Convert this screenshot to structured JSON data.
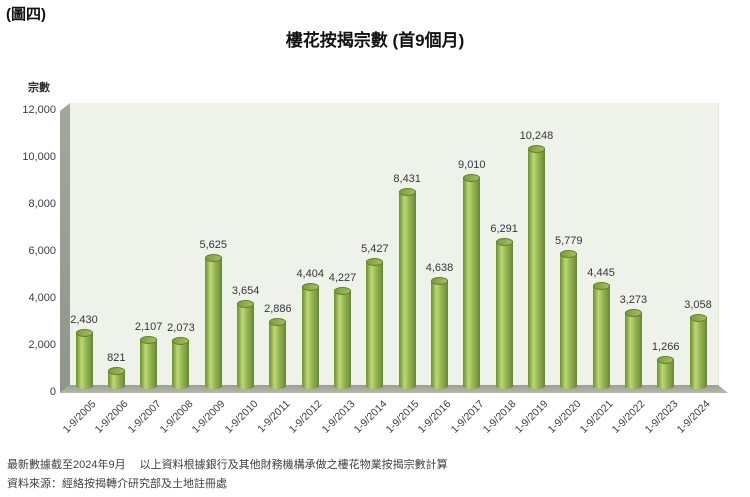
{
  "figure_label": "(圖四)",
  "title": "樓花按揭宗數 (首9個月)",
  "y_axis_title": "宗數",
  "footnotes": {
    "line1": "最新數據截至2024年9月　 以上資料根據銀行及其他財務機構承做之樓花物業按揭宗數計算",
    "line2": "資料來源：經絡按揭轉介研究部及土地註冊處"
  },
  "chart_data": {
    "type": "bar",
    "style": "3d-cylinder",
    "title": "樓花按揭宗數 (首9個月)",
    "ylabel": "宗數",
    "xlabel": "",
    "categories": [
      "1-9/2005",
      "1-9/2006",
      "1-9/2007",
      "1-9/2008",
      "1-9/2009",
      "1-9/2010",
      "1-9/2011",
      "1-9/2012",
      "1-9/2013",
      "1-9/2014",
      "1-9/2015",
      "1-9/2016",
      "1-9/2017",
      "1-9/2018",
      "1-9/2019",
      "1-9/2020",
      "1-9/2021",
      "1-9/2022",
      "1-9/2023",
      "1-9/2024"
    ],
    "values": [
      2430,
      821,
      2107,
      2073,
      5625,
      3654,
      2886,
      4404,
      4227,
      5427,
      8431,
      4638,
      9010,
      6291,
      10248,
      5779,
      4445,
      3273,
      1266,
      3058
    ],
    "data_labels": [
      "2,430",
      "821",
      "2,107",
      "2,073",
      "5,625",
      "3,654",
      "2,886",
      "4,404",
      "4,227",
      "5,427",
      "8,431",
      "4,638",
      "9,010",
      "6,291",
      "10,248",
      "5,779",
      "4,445",
      "3,273",
      "1,266",
      "3,058"
    ],
    "ylim": [
      0,
      12000
    ],
    "ytick_step": 2000,
    "ytick_labels": [
      "0",
      "2,000",
      "4,000",
      "6,000",
      "8,000",
      "10,000",
      "12,000"
    ],
    "grid": false,
    "legend": null,
    "colors": {
      "bar_main": "#90b24d",
      "bar_highlight": "#bdd778",
      "bar_edge": "#648530",
      "wall": "#eff2ea",
      "side_wall": "#9aa096",
      "floor": "#a8ab9f",
      "text": "#363636"
    }
  }
}
